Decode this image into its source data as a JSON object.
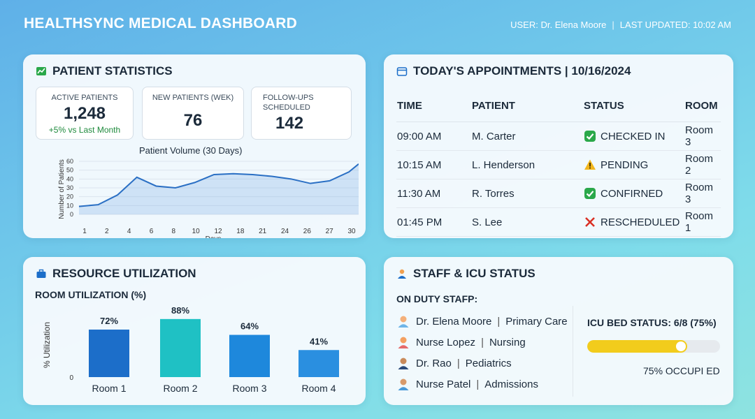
{
  "header": {
    "title": "HEALTHSYNC MEDICAL DASHBOARD",
    "user": "USER: Dr. Elena Moore",
    "updated": "LAST UPDATED: 10:02 AM"
  },
  "patient_stats": {
    "title": "PATIENT STATISTICS",
    "active": {
      "label": "ACTIVE PATIENTS",
      "value": "1,248",
      "change": "+5% vs Last Month"
    },
    "new": {
      "label": "NEW PATIENTS (WEK)",
      "value": "76"
    },
    "followups": {
      "label1": "FOLLOW-UPS",
      "label2": "SCHEDULED",
      "value": "142"
    }
  },
  "appointments": {
    "title": "TODAY'S APPOINTMENTS | 10/16/2024",
    "headers": [
      "TIME",
      "PATIENT",
      "STATUS",
      "ROOM"
    ],
    "rows": [
      {
        "time": "09:00 AM",
        "patient": "M. Carter",
        "status": "CHECKED IN",
        "status_icon": "check-icon",
        "room": "Room 3"
      },
      {
        "time": "10:15 AM",
        "patient": "L. Henderson",
        "status": "PENDING",
        "status_icon": "warning-icon",
        "room": "Room 2"
      },
      {
        "time": "11:30 AM",
        "patient": "R. Torres",
        "status": "CONFIRNED",
        "status_icon": "check-icon",
        "room": "Room 3"
      },
      {
        "time": "01:45 PM",
        "patient": "S. Lee",
        "status": "RESCHEDULED",
        "status_icon": "cross-icon",
        "room": "Room 1"
      }
    ]
  },
  "resources": {
    "title": "RESOURCE UTILIZATION",
    "subtitle": "ROOM UTILIZATION (%)"
  },
  "staff": {
    "title": "STAFF & ICU STATUS",
    "on_duty_label": "ON DUTY STAFP:",
    "members": [
      {
        "name": "Dr. Elena Moore",
        "dept": "Primary Care",
        "avatar": "female-doctor-icon"
      },
      {
        "name": "Nurse Lopez",
        "dept": "Nursing",
        "avatar": "female-nurse-icon"
      },
      {
        "name": "Dr. Rao",
        "dept": "Pediatrics",
        "avatar": "male-doctor-icon"
      },
      {
        "name": "Nurse Patel",
        "dept": "Admissions",
        "avatar": "male-nurse-icon"
      }
    ],
    "icu_label": "ICU BED STATUS: 6/8 (75%)",
    "icu_fraction": 0.75,
    "icu_occupied_text": "75% OCCUPI ED"
  },
  "colors": {
    "accent": "#1c6ec9",
    "teal": "#1fc1c4",
    "success": "#1e8a3c",
    "warn": "#f2cc1c",
    "danger": "#d93025"
  },
  "chart_data": [
    {
      "type": "area",
      "title": "Patient Volume (30 Days)",
      "xlabel": "Days",
      "ylabel": "Number of Patients",
      "ylim": [
        0,
        60
      ],
      "yticks": [
        0,
        10,
        20,
        30,
        40,
        50,
        60
      ],
      "x_tick_labels": [
        "1",
        "2",
        "4",
        "6",
        "8",
        "10",
        "12",
        "18",
        "21",
        "24",
        "26",
        "27",
        "30"
      ],
      "x": [
        1,
        3,
        5,
        7,
        9,
        11,
        13,
        15,
        17,
        19,
        21,
        23,
        25,
        27,
        29,
        30
      ],
      "y": [
        9,
        11,
        22,
        42,
        32,
        30,
        36,
        45,
        46,
        45,
        43,
        40,
        35,
        38,
        48,
        57
      ]
    },
    {
      "type": "bar",
      "categories": [
        "Room 1",
        "Room 2",
        "Room 3",
        "Room 4"
      ],
      "values": [
        72,
        88,
        64,
        41
      ],
      "value_labels": [
        "72%",
        "88%",
        "64%",
        "41%"
      ],
      "ylabel": "% Utilization",
      "yticks": [
        0
      ],
      "ylim": [
        0,
        100
      ],
      "colors": [
        "#1c6ec9",
        "#1fc1c4",
        "#1e88dc",
        "#2a8fe0"
      ]
    }
  ]
}
